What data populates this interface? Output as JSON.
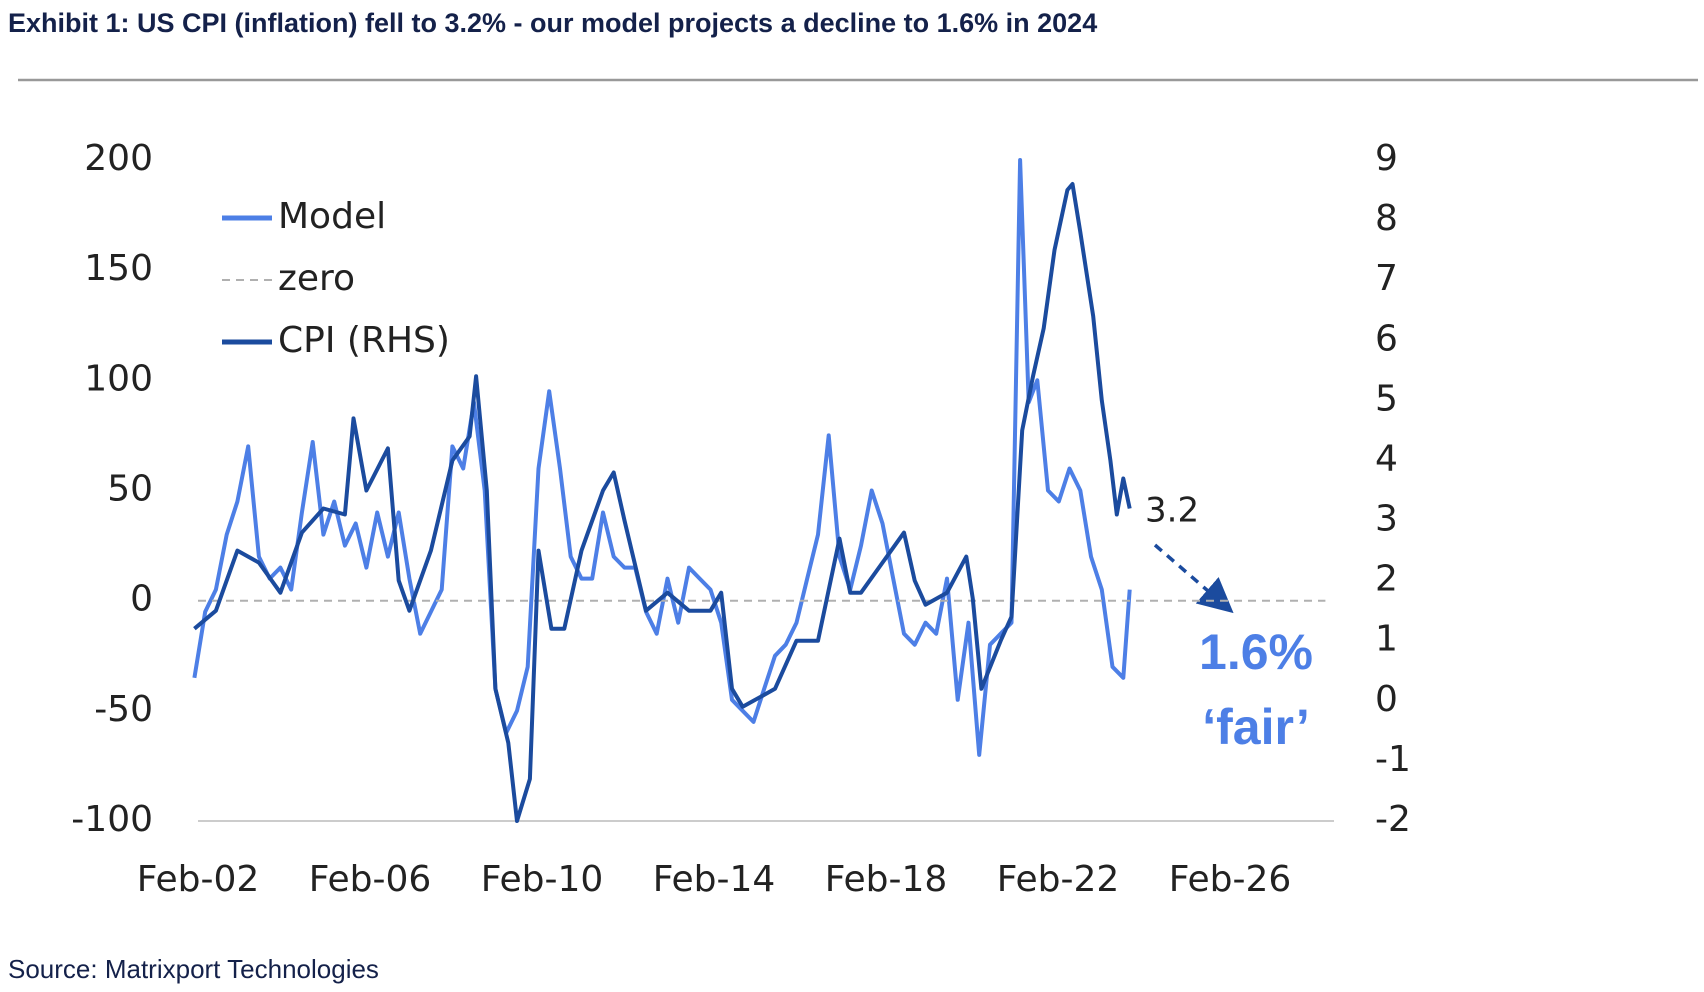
{
  "chart_data": {
    "type": "line",
    "title": "Exhibit 1: US CPI (inflation) fell to 3.2% - our model projects a decline to 1.6% in 2024",
    "source": "Source: Matrixport Technologies",
    "legend": "upper left",
    "xlim": [
      2002.083,
      2028.5
    ],
    "xticks": [
      {
        "value": 2002.083,
        "label": "Feb-02"
      },
      {
        "value": 2006.083,
        "label": "Feb-06"
      },
      {
        "value": 2010.083,
        "label": "Feb-10"
      },
      {
        "value": 2014.083,
        "label": "Feb-14"
      },
      {
        "value": 2018.083,
        "label": "Feb-18"
      },
      {
        "value": 2022.083,
        "label": "Feb-22"
      },
      {
        "value": 2026.083,
        "label": "Feb-26"
      }
    ],
    "ylim": [
      -100,
      200
    ],
    "yticks": [
      -100,
      -50,
      0,
      50,
      100,
      150,
      200
    ],
    "y2lim": [
      -2,
      9
    ],
    "y2ticks": [
      -2,
      -1,
      0,
      1,
      2,
      3,
      4,
      5,
      6,
      7,
      8,
      9
    ],
    "annotations": [
      "3.2",
      "1.6%",
      "‘fair’"
    ],
    "series": [
      {
        "name": "Model",
        "color": "#4d7fe6",
        "axis": "y",
        "x": [
          2002.0,
          2002.25,
          2002.5,
          2002.75,
          2003.0,
          2003.25,
          2003.5,
          2003.75,
          2004.0,
          2004.25,
          2004.5,
          2004.75,
          2005.0,
          2005.25,
          2005.5,
          2005.75,
          2006.0,
          2006.25,
          2006.5,
          2006.75,
          2007.0,
          2007.25,
          2007.5,
          2007.75,
          2008.0,
          2008.25,
          2008.5,
          2008.75,
          2009.0,
          2009.25,
          2009.5,
          2009.75,
          2010.0,
          2010.25,
          2010.5,
          2010.75,
          2011.0,
          2011.25,
          2011.5,
          2011.75,
          2012.0,
          2012.25,
          2012.5,
          2012.75,
          2013.0,
          2013.25,
          2013.5,
          2013.75,
          2014.0,
          2014.25,
          2014.5,
          2014.75,
          2015.0,
          2015.25,
          2015.5,
          2015.75,
          2016.0,
          2016.25,
          2016.5,
          2016.75,
          2017.0,
          2017.25,
          2017.5,
          2017.75,
          2018.0,
          2018.25,
          2018.5,
          2018.75,
          2019.0,
          2019.25,
          2019.5,
          2019.75,
          2020.0,
          2020.25,
          2020.5,
          2020.75,
          2021.0,
          2021.2,
          2021.4,
          2021.6,
          2021.85,
          2022.1,
          2022.35,
          2022.6,
          2022.85,
          2023.1,
          2023.35,
          2023.6,
          2023.75
        ],
        "values": [
          -35,
          -5,
          5,
          30,
          45,
          70,
          20,
          10,
          15,
          5,
          40,
          72,
          30,
          45,
          25,
          35,
          15,
          40,
          20,
          40,
          10,
          -15,
          -5,
          5,
          70,
          60,
          90,
          50,
          -40,
          -60,
          -50,
          -30,
          60,
          95,
          60,
          20,
          10,
          10,
          40,
          20,
          15,
          15,
          -5,
          -15,
          10,
          -10,
          15,
          10,
          5,
          -10,
          -45,
          -50,
          -55,
          -40,
          -25,
          -20,
          -10,
          10,
          30,
          75,
          20,
          5,
          25,
          50,
          35,
          10,
          -15,
          -20,
          -10,
          -15,
          10,
          -45,
          -10,
          -70,
          -20,
          -15,
          -10,
          200,
          90,
          100,
          50,
          45,
          60,
          50,
          20,
          5,
          -30,
          -35,
          5
        ]
      },
      {
        "name": "zero",
        "color": "#b0b0b0",
        "axis": "y",
        "dashed": true,
        "x": [
          2002.083,
          2028.3
        ],
        "values": [
          0,
          0
        ]
      },
      {
        "name": "CPI (RHS)",
        "color": "#1b4b9e",
        "axis": "y2",
        "x": [
          2002.0,
          2002.5,
          2003.0,
          2003.5,
          2004.0,
          2004.5,
          2005.0,
          2005.5,
          2005.7,
          2006.0,
          2006.5,
          2006.75,
          2007.0,
          2007.5,
          2008.0,
          2008.4,
          2008.55,
          2008.8,
          2009.0,
          2009.3,
          2009.5,
          2009.8,
          2010.0,
          2010.3,
          2010.6,
          2011.0,
          2011.5,
          2011.75,
          2012.0,
          2012.5,
          2013.0,
          2013.5,
          2014.0,
          2014.25,
          2014.5,
          2014.75,
          2015.0,
          2015.5,
          2016.0,
          2016.5,
          2017.0,
          2017.25,
          2017.5,
          2018.0,
          2018.5,
          2018.75,
          2019.0,
          2019.5,
          2019.95,
          2020.1,
          2020.3,
          2020.75,
          2021.0,
          2021.25,
          2021.5,
          2021.75,
          2022.0,
          2022.3,
          2022.42,
          2022.6,
          2022.9,
          2023.1,
          2023.3,
          2023.45,
          2023.6,
          2023.75
        ],
        "values": [
          1.2,
          1.5,
          2.5,
          2.3,
          1.8,
          2.8,
          3.2,
          3.1,
          4.7,
          3.5,
          4.2,
          2.0,
          1.5,
          2.5,
          4.0,
          4.4,
          5.4,
          3.5,
          0.2,
          -0.7,
          -2.0,
          -1.3,
          2.5,
          1.2,
          1.2,
          2.5,
          3.5,
          3.8,
          3.0,
          1.5,
          1.8,
          1.5,
          1.5,
          1.8,
          0.2,
          -0.1,
          0.0,
          0.2,
          1.0,
          1.0,
          2.7,
          1.8,
          1.8,
          2.3,
          2.8,
          2.0,
          1.6,
          1.8,
          2.4,
          1.7,
          0.2,
          1.0,
          1.4,
          4.5,
          5.4,
          6.2,
          7.5,
          8.5,
          8.6,
          7.8,
          6.4,
          5.0,
          4.0,
          3.1,
          3.7,
          3.2
        ]
      }
    ]
  }
}
